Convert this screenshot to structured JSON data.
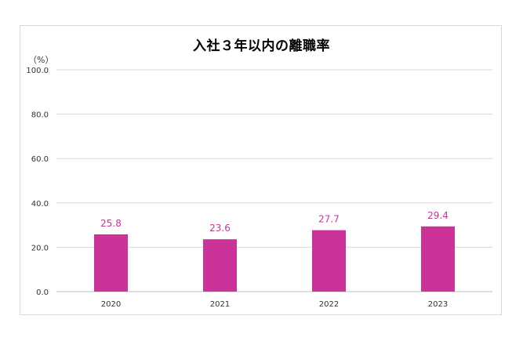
{
  "chart_data": {
    "type": "bar",
    "title": "入社３年以内の離職率",
    "unit_label": "（%）",
    "categories": [
      "2020",
      "2021",
      "2022",
      "2023"
    ],
    "values": [
      25.8,
      23.6,
      27.7,
      29.4
    ],
    "value_labels": [
      "25.8",
      "23.6",
      "27.7",
      "29.4"
    ],
    "ylim": [
      0,
      100
    ],
    "yticks": [
      "0.0",
      "20.0",
      "40.0",
      "60.0",
      "80.0",
      "100.0"
    ],
    "grid": true,
    "legend": "none",
    "colors": {
      "bar": "#cc3399",
      "label": "#cc3399",
      "grid": "#d9d9d9",
      "axis": "#bfbfbf"
    }
  }
}
